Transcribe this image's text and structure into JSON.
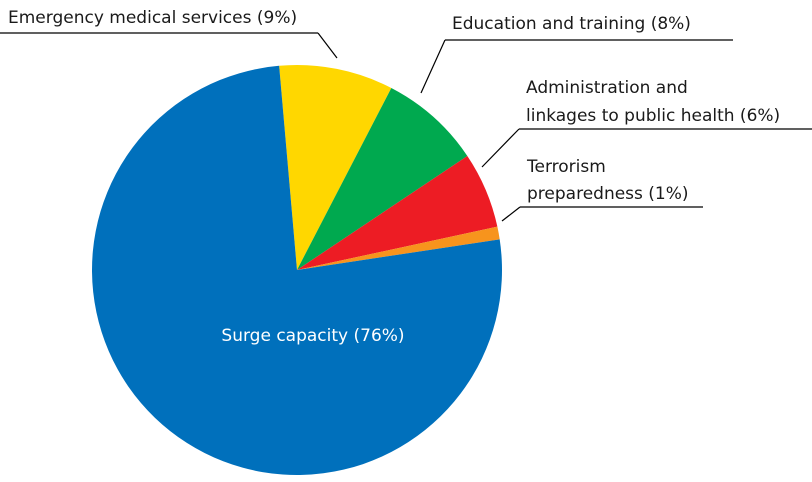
{
  "chart_data": {
    "type": "pie",
    "title": "",
    "slices": [
      {
        "label": "Surge capacity (76%)",
        "value": 76,
        "color": "#0070BC",
        "label_placement": "inside"
      },
      {
        "label": "Emergency medical services (9%)",
        "value": 9,
        "color": "#FFD700",
        "label_placement": "outside"
      },
      {
        "label": "Education and training (8%)",
        "value": 8,
        "color": "#00A94F",
        "label_placement": "outside"
      },
      {
        "label_lines": [
          "Administration and",
          "linkages to public health (6%)"
        ],
        "value": 6,
        "color": "#ED1C24",
        "label_placement": "outside"
      },
      {
        "label_lines": [
          "Terrorism",
          "preparedness (1%)"
        ],
        "value": 1,
        "color": "#F7941D",
        "label_placement": "outside"
      }
    ]
  }
}
